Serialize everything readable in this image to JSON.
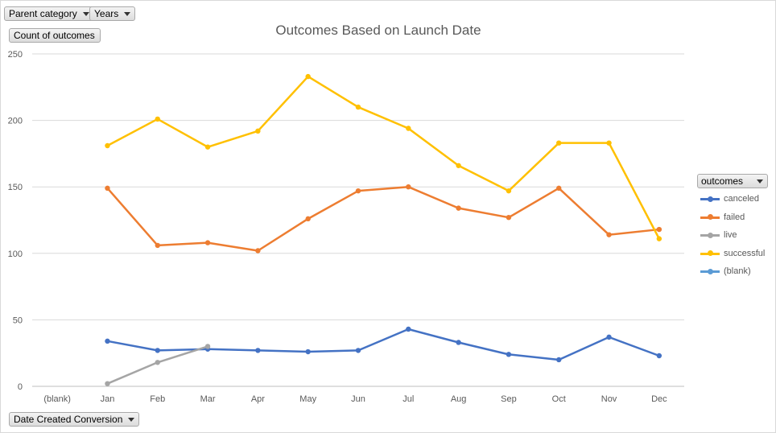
{
  "controls": {
    "parent_category": "Parent category",
    "years": "Years",
    "count_of_outcomes": "Count of outcomes",
    "date_created_conversion": "Date Created Conversion"
  },
  "legend": {
    "title": "outcomes",
    "items": [
      {
        "label": "canceled",
        "color": "#4472c4"
      },
      {
        "label": "failed",
        "color": "#ed7d31"
      },
      {
        "label": "live",
        "color": "#a5a5a5"
      },
      {
        "label": "successful",
        "color": "#ffc000"
      },
      {
        "label": "(blank)",
        "color": "#5b9bd5"
      }
    ]
  },
  "chart_data": {
    "type": "line",
    "title": "Outcomes Based on Launch Date",
    "xlabel": "",
    "ylabel": "",
    "categories": [
      "(blank)",
      "Jan",
      "Feb",
      "Mar",
      "Apr",
      "May",
      "Jun",
      "Jul",
      "Aug",
      "Sep",
      "Oct",
      "Nov",
      "Dec"
    ],
    "ylim": [
      0,
      250
    ],
    "yticks": [
      0,
      50,
      100,
      150,
      200,
      250
    ],
    "grid": true,
    "legend_position": "right",
    "series": [
      {
        "name": "canceled",
        "color": "#4472c4",
        "values": [
          null,
          34,
          27,
          28,
          27,
          26,
          27,
          43,
          33,
          24,
          20,
          37,
          23
        ]
      },
      {
        "name": "failed",
        "color": "#ed7d31",
        "values": [
          null,
          149,
          106,
          108,
          102,
          126,
          147,
          150,
          134,
          127,
          149,
          114,
          118
        ]
      },
      {
        "name": "live",
        "color": "#a5a5a5",
        "values": [
          null,
          2,
          18,
          30,
          null,
          null,
          null,
          null,
          null,
          null,
          null,
          null,
          null
        ]
      },
      {
        "name": "successful",
        "color": "#ffc000",
        "values": [
          null,
          181,
          201,
          180,
          192,
          233,
          210,
          194,
          166,
          147,
          183,
          183,
          111
        ]
      }
    ]
  }
}
